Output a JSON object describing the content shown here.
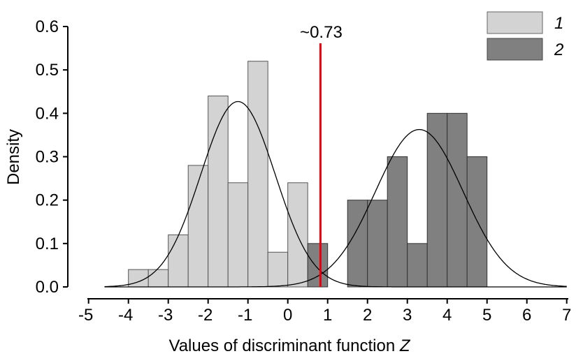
{
  "chart_data": {
    "type": "bar",
    "xlabel": "Values of discriminant function ",
    "xlabel_italic": "Z",
    "ylabel": "Density",
    "xlim": [
      -5,
      7
    ],
    "ylim": [
      0,
      0.6
    ],
    "xticks": [
      "-5",
      "-4",
      "-3",
      "-2",
      "-1",
      "0",
      "1",
      "2",
      "3",
      "4",
      "5",
      "6",
      "7"
    ],
    "yticks": [
      "0.0",
      "0.1",
      "0.2",
      "0.3",
      "0.4",
      "0.5",
      "0.6"
    ],
    "bin_width": 0.5,
    "series": [
      {
        "name": "1",
        "color": "#d3d3d3",
        "bins": [
          [
            -4,
            0.04
          ],
          [
            -3.5,
            0.04
          ],
          [
            -3,
            0.12
          ],
          [
            -2.5,
            0.28
          ],
          [
            -2,
            0.44
          ],
          [
            -1.5,
            0.24
          ],
          [
            -1,
            0.52
          ],
          [
            -0.5,
            0.08
          ],
          [
            0,
            0.24
          ]
        ],
        "curve": {
          "mean": -1.25,
          "sd": 0.934
        }
      },
      {
        "name": "2",
        "color": "#808080",
        "bins": [
          [
            0.5,
            0.1
          ],
          [
            1.5,
            0.2
          ],
          [
            2,
            0.2
          ],
          [
            2.5,
            0.3
          ],
          [
            3,
            0.1
          ],
          [
            3.5,
            0.4
          ],
          [
            4,
            0.4
          ],
          [
            4.5,
            0.3
          ]
        ],
        "curve": {
          "mean": 3.3,
          "sd": 1.1
        }
      }
    ],
    "threshold": {
      "label": "~0.73",
      "x": 0.82,
      "color": "#e8000b"
    },
    "legend": "top-right",
    "grid": false
  }
}
